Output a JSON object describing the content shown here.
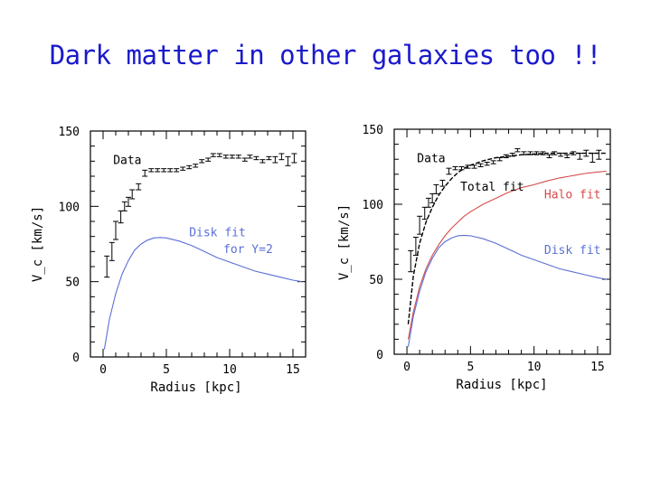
{
  "slide": {
    "title": "Dark matter in other galaxies too !!"
  },
  "colors": {
    "title": "#1a1acc",
    "disk": "#5a6fd6",
    "halo": "#d64a4a",
    "total": "#000000",
    "data": "#000000"
  },
  "chart_data": [
    {
      "type": "scatter",
      "xlabel": "Radius [kpc]",
      "ylabel": "V_c [km/s]",
      "xlim": [
        -1,
        16
      ],
      "ylim": [
        0,
        150
      ],
      "xticks": [
        0,
        5,
        10,
        15
      ],
      "yticks": [
        0,
        50,
        100,
        150
      ],
      "xtick_labels": [
        "0",
        "5",
        "10",
        "15"
      ],
      "ytick_labels": [
        "0",
        "50",
        "100",
        "150"
      ],
      "annotations": [
        {
          "text": "Data",
          "x": 0.8,
          "y": 128,
          "color": "#000000"
        },
        {
          "text": "Disk fit",
          "x": 6.8,
          "y": 80,
          "color": "#5a6fd6"
        },
        {
          "text": "for Υ=2",
          "x": 9.5,
          "y": 69,
          "color": "#5a6fd6"
        }
      ],
      "series": [
        {
          "name": "Data",
          "style": "errorbar",
          "points": [
            [
              0.3,
              60,
              7
            ],
            [
              0.7,
              70,
              6
            ],
            [
              1.0,
              84,
              6
            ],
            [
              1.4,
              93,
              4
            ],
            [
              1.7,
              100,
              3
            ],
            [
              2.0,
              103,
              3
            ],
            [
              2.3,
              108,
              3
            ],
            [
              2.8,
              113,
              2
            ],
            [
              3.3,
              122,
              2
            ],
            [
              3.8,
              124,
              1
            ],
            [
              4.3,
              124,
              1
            ],
            [
              4.8,
              124,
              1
            ],
            [
              5.3,
              124,
              1
            ],
            [
              5.8,
              124,
              1
            ],
            [
              6.3,
              125,
              1
            ],
            [
              6.8,
              126,
              1
            ],
            [
              7.3,
              127,
              1
            ],
            [
              7.8,
              130,
              1
            ],
            [
              8.3,
              131,
              1
            ],
            [
              8.7,
              134,
              1
            ],
            [
              9.2,
              134,
              1
            ],
            [
              9.7,
              133,
              1
            ],
            [
              10.2,
              133,
              1
            ],
            [
              10.7,
              133,
              1
            ],
            [
              11.2,
              131,
              1
            ],
            [
              11.6,
              133,
              1
            ],
            [
              12.1,
              132,
              1
            ],
            [
              12.6,
              130,
              1
            ],
            [
              13.1,
              132,
              1
            ],
            [
              13.6,
              131,
              2
            ],
            [
              14.1,
              133,
              2
            ],
            [
              14.6,
              130,
              3
            ],
            [
              15.1,
              132,
              3
            ]
          ]
        },
        {
          "name": "Disk fit",
          "style": "line",
          "color": "#5a6fd6",
          "points": [
            [
              0.1,
              5
            ],
            [
              0.5,
              25
            ],
            [
              1,
              42
            ],
            [
              1.5,
              55
            ],
            [
              2,
              64
            ],
            [
              2.5,
              71
            ],
            [
              3,
              75
            ],
            [
              3.5,
              77.5
            ],
            [
              4,
              79
            ],
            [
              4.5,
              79.3
            ],
            [
              5,
              79
            ],
            [
              6,
              77
            ],
            [
              7,
              74
            ],
            [
              8,
              70
            ],
            [
              9,
              66
            ],
            [
              10,
              63
            ],
            [
              11,
              60
            ],
            [
              12,
              57
            ],
            [
              13,
              55
            ],
            [
              14,
              53
            ],
            [
              15,
              51
            ],
            [
              15.7,
              50
            ]
          ]
        }
      ]
    },
    {
      "type": "scatter",
      "xlabel": "Radius [kpc]",
      "ylabel": "V_c [km/s]",
      "xlim": [
        -1,
        16
      ],
      "ylim": [
        0,
        150
      ],
      "xticks": [
        0,
        5,
        10,
        15
      ],
      "yticks": [
        0,
        50,
        100,
        150
      ],
      "xtick_labels": [
        "0",
        "5",
        "10",
        "15"
      ],
      "ytick_labels": [
        "0",
        "50",
        "100",
        "150"
      ],
      "annotations": [
        {
          "text": "Data",
          "x": 0.8,
          "y": 128,
          "color": "#000000"
        },
        {
          "text": "Total fit",
          "x": 4.2,
          "y": 109,
          "color": "#000000"
        },
        {
          "text": "Halo fit",
          "x": 10.8,
          "y": 104,
          "color": "#d64a4a"
        },
        {
          "text": "Disk fit",
          "x": 10.8,
          "y": 67,
          "color": "#5a6fd6"
        }
      ],
      "series": [
        {
          "name": "Data",
          "style": "errorbar",
          "points": [
            [
              0.3,
              62,
              7
            ],
            [
              0.7,
              72,
              6
            ],
            [
              1.0,
              86,
              6
            ],
            [
              1.4,
              94,
              4
            ],
            [
              1.7,
              101,
              3
            ],
            [
              2.0,
              104,
              3
            ],
            [
              2.3,
              110,
              3
            ],
            [
              2.8,
              114,
              2
            ],
            [
              3.3,
              122,
              2
            ],
            [
              3.8,
              124,
              1
            ],
            [
              4.3,
              124,
              1
            ],
            [
              4.8,
              125,
              1
            ],
            [
              5.3,
              125,
              1
            ],
            [
              5.8,
              126,
              1
            ],
            [
              6.3,
              127,
              1
            ],
            [
              6.8,
              128,
              1
            ],
            [
              7.3,
              130,
              1
            ],
            [
              7.8,
              132,
              1
            ],
            [
              8.3,
              133,
              1
            ],
            [
              8.7,
              136,
              1
            ],
            [
              9.2,
              134,
              1
            ],
            [
              9.7,
              134,
              1
            ],
            [
              10.2,
              134,
              1
            ],
            [
              10.7,
              134,
              1
            ],
            [
              11.2,
              132,
              1
            ],
            [
              11.6,
              134,
              1
            ],
            [
              12.1,
              133,
              1
            ],
            [
              12.6,
              132,
              1
            ],
            [
              13.1,
              134,
              1
            ],
            [
              13.6,
              132,
              2
            ],
            [
              14.1,
              134,
              2
            ],
            [
              14.6,
              131,
              3
            ],
            [
              15.1,
              133,
              3
            ]
          ]
        },
        {
          "name": "Total fit",
          "style": "line",
          "color": "#000000",
          "points": [
            [
              0.1,
              20
            ],
            [
              0.5,
              52
            ],
            [
              1,
              74
            ],
            [
              1.5,
              88
            ],
            [
              2,
              98
            ],
            [
              2.5,
              106
            ],
            [
              3,
              112
            ],
            [
              3.5,
              117
            ],
            [
              4,
              121
            ],
            [
              4.5,
              124
            ],
            [
              5,
              126
            ],
            [
              6,
              129
            ],
            [
              7,
              131
            ],
            [
              8,
              132
            ],
            [
              9,
              133
            ],
            [
              10,
              133.5
            ],
            [
              11,
              134
            ],
            [
              12,
              134
            ],
            [
              13,
              134
            ],
            [
              14,
              134
            ],
            [
              15,
              134
            ],
            [
              15.7,
              134
            ]
          ]
        },
        {
          "name": "Halo fit",
          "style": "line",
          "color": "#d64a4a",
          "points": [
            [
              0.1,
              10
            ],
            [
              0.5,
              28
            ],
            [
              1,
              45
            ],
            [
              1.5,
              57
            ],
            [
              2,
              66
            ],
            [
              2.5,
              73
            ],
            [
              3,
              79
            ],
            [
              3.5,
              84
            ],
            [
              4,
              88
            ],
            [
              4.5,
              92
            ],
            [
              5,
              95
            ],
            [
              6,
              100
            ],
            [
              7,
              104
            ],
            [
              8,
              108
            ],
            [
              9,
              111
            ],
            [
              10,
              113
            ],
            [
              11,
              115.5
            ],
            [
              12,
              117.5
            ],
            [
              13,
              119
            ],
            [
              14,
              120.5
            ],
            [
              15,
              121.5
            ],
            [
              15.7,
              122
            ]
          ]
        },
        {
          "name": "Disk fit",
          "style": "line",
          "color": "#5a6fd6",
          "points": [
            [
              0.1,
              5
            ],
            [
              0.5,
              25
            ],
            [
              1,
              42
            ],
            [
              1.5,
              55
            ],
            [
              2,
              64
            ],
            [
              2.5,
              71
            ],
            [
              3,
              75
            ],
            [
              3.5,
              77.5
            ],
            [
              4,
              79
            ],
            [
              4.5,
              79.3
            ],
            [
              5,
              79
            ],
            [
              6,
              77
            ],
            [
              7,
              74
            ],
            [
              8,
              70
            ],
            [
              9,
              66
            ],
            [
              10,
              63
            ],
            [
              11,
              60
            ],
            [
              12,
              57
            ],
            [
              13,
              55
            ],
            [
              14,
              53
            ],
            [
              15,
              51
            ],
            [
              15.7,
              50
            ]
          ]
        }
      ]
    }
  ]
}
